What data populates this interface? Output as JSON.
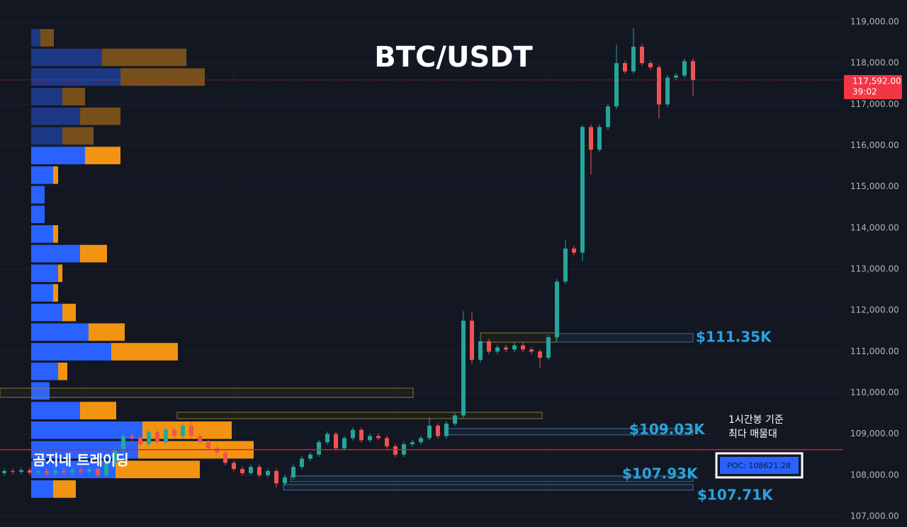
{
  "chart_data": {
    "type": "candlestick",
    "title": "BTC/USDT",
    "watermark": "곰지네 트레이딩",
    "ylim": [
      106742,
      119533
    ],
    "yticks": [
      {
        "value": 107000,
        "label": "107,000.00"
      },
      {
        "value": 108000,
        "label": "108,000.00"
      },
      {
        "value": 109000,
        "label": "109,000.00"
      },
      {
        "value": 110000,
        "label": "110,000.00"
      },
      {
        "value": 111000,
        "label": "111,000.00"
      },
      {
        "value": 112000,
        "label": "112,000.00"
      },
      {
        "value": 113000,
        "label": "113,000.00"
      },
      {
        "value": 114000,
        "label": "114,000.00"
      },
      {
        "value": 115000,
        "label": "115,000.00"
      },
      {
        "value": 116000,
        "label": "116,000.00"
      },
      {
        "value": 117000,
        "label": "117,000.00"
      },
      {
        "value": 118000,
        "label": "118,000.00"
      },
      {
        "value": 119000,
        "label": "119,000.00"
      }
    ],
    "grid": true,
    "up_color": "#26a69a",
    "down_color": "#ef5350",
    "open": [
      108050,
      108100,
      108080,
      108120,
      108060,
      108100,
      108040,
      108110,
      108070,
      108130,
      108090,
      108150,
      108000,
      108300,
      108600,
      108950,
      108900,
      108750,
      109050,
      108800,
      109100,
      108950,
      109200,
      108950,
      108800,
      108650,
      108550,
      108300,
      108150,
      108050,
      108200,
      108000,
      108100,
      107800,
      107950,
      108200,
      108400,
      108500,
      108800,
      109000,
      108650,
      108900,
      109100,
      108850,
      108950,
      108900,
      108700,
      108500,
      108750,
      108800,
      108900,
      109200,
      108950,
      109250,
      109450,
      111750,
      110800,
      111250,
      111000,
      111100,
      111050,
      111150,
      111050,
      111000,
      110850,
      111350,
      112700,
      113500,
      113400,
      116450,
      115900,
      116450,
      116950,
      118000,
      117800,
      118400,
      118000,
      117900,
      117000,
      117650,
      117700,
      118050
    ],
    "high": [
      108160,
      108160,
      108180,
      108180,
      108160,
      108160,
      108170,
      108170,
      108190,
      108190,
      108210,
      108210,
      108360,
      108660,
      109010,
      109010,
      108960,
      109110,
      109110,
      109160,
      109160,
      109260,
      109300,
      109010,
      108860,
      108710,
      108610,
      108360,
      108210,
      108260,
      108260,
      108160,
      108160,
      108010,
      108260,
      108460,
      108560,
      108860,
      109060,
      109060,
      108960,
      109160,
      109160,
      109010,
      109010,
      108960,
      108760,
      108810,
      108860,
      108960,
      109400,
      109260,
      109310,
      109510,
      111980,
      111950,
      111310,
      111310,
      111160,
      111160,
      111210,
      111210,
      111110,
      111060,
      111410,
      112760,
      113700,
      113560,
      116500,
      116510,
      116510,
      117010,
      118450,
      118060,
      118850,
      118460,
      118060,
      117960,
      117710,
      117760,
      118110,
      118110
    ],
    "low": [
      107990,
      108020,
      108020,
      108000,
      108000,
      107980,
      107980,
      108010,
      108010,
      108030,
      108030,
      107940,
      107940,
      108240,
      108540,
      108840,
      108690,
      108690,
      108740,
      108740,
      108890,
      108890,
      108890,
      108740,
      108590,
      108490,
      108240,
      108090,
      107990,
      107990,
      107940,
      107940,
      107700,
      107740,
      107890,
      108140,
      108340,
      108440,
      108740,
      108590,
      108590,
      108840,
      108790,
      108790,
      108840,
      108640,
      108440,
      108440,
      108690,
      108740,
      108840,
      108890,
      108890,
      109190,
      109390,
      110700,
      110740,
      110940,
      110940,
      110990,
      110990,
      110990,
      110940,
      110600,
      110790,
      111290,
      112640,
      113340,
      113200,
      115300,
      115840,
      116390,
      116890,
      117740,
      117740,
      117940,
      117840,
      116650,
      116940,
      117590,
      117640,
      117200
    ],
    "close": [
      108100,
      108080,
      108120,
      108060,
      108100,
      108040,
      108110,
      108070,
      108130,
      108090,
      108150,
      108000,
      108300,
      108600,
      108950,
      108900,
      108750,
      109050,
      108800,
      109100,
      108950,
      109200,
      108950,
      108800,
      108650,
      108550,
      108300,
      108150,
      108050,
      108200,
      108000,
      108100,
      107800,
      107950,
      108200,
      108400,
      108500,
      108800,
      109000,
      108650,
      108900,
      109100,
      108850,
      108950,
      108900,
      108700,
      108500,
      108750,
      108800,
      108900,
      109200,
      108950,
      109250,
      109450,
      111750,
      110800,
      111250,
      111000,
      111100,
      111050,
      111150,
      111050,
      111000,
      110850,
      111350,
      112700,
      113500,
      113400,
      116450,
      115900,
      116450,
      116950,
      118000,
      117800,
      118400,
      118000,
      117900,
      117000,
      117650,
      117700,
      118050,
      117592
    ],
    "last_price": {
      "value": 117592,
      "label": "117,592.00"
    },
    "countdown": "39:02",
    "volume_profile": {
      "bins": [
        118845,
        118369,
        117893,
        117416,
        116940,
        116464,
        115988,
        115512,
        115035,
        114559,
        114083,
        113607,
        113130,
        112654,
        112178,
        111702,
        111226,
        110749,
        110273,
        109797,
        109321,
        108845,
        108368,
        107892,
        107416
      ],
      "buy": [
        13,
        100,
        126,
        44,
        69,
        44,
        76,
        31,
        19,
        19,
        31,
        69,
        38,
        31,
        44,
        81,
        113,
        38,
        26,
        69,
        157,
        151,
        119,
        31
      ],
      "sell": [
        19,
        119,
        119,
        32,
        57,
        44,
        50,
        7,
        0,
        0,
        7,
        38,
        6,
        7,
        19,
        51,
        94,
        13,
        0,
        51,
        126,
        163,
        119,
        32
      ],
      "buy_color": "#2962ff",
      "sell_color": "#f29411",
      "value_area_high": 115988
    },
    "poc": {
      "value": 108621.28,
      "label": "POC: 108621.28",
      "note": [
        "1시간봉 기준",
        "최다 매물대"
      ],
      "color": "#e61b1b"
    },
    "zones": [
      {
        "low": 111230,
        "high": 111436,
        "label": "$111.35K"
      },
      {
        "low": 108978,
        "high": 109133,
        "label": "$109.03K"
      },
      {
        "low": 107843,
        "high": 107980,
        "label": "$107.93K"
      },
      {
        "low": 107637,
        "high": 107774,
        "label": "$107.71K"
      }
    ],
    "zone_color": "#29a3e0"
  }
}
